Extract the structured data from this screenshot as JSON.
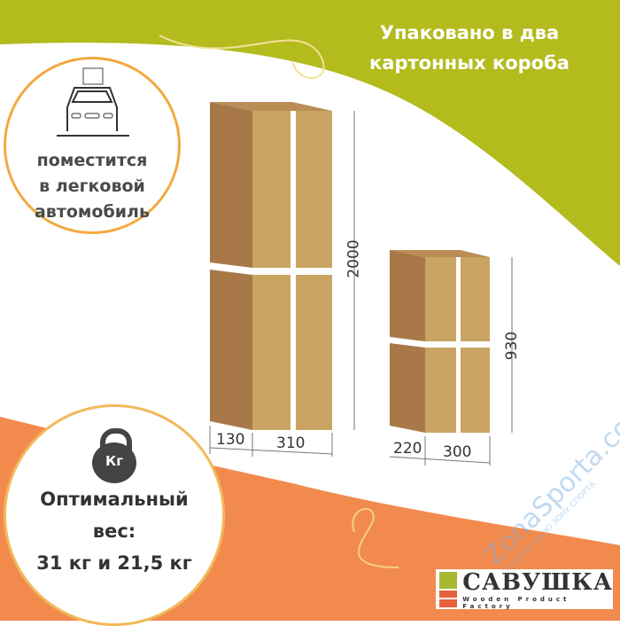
{
  "title": "Упаковано в два картонных короба",
  "car_badge": {
    "icon": "car-with-box-icon",
    "lines": [
      "поместится",
      "в легковой",
      "автомобиль"
    ]
  },
  "weight_badge": {
    "icon": "kettlebell-icon",
    "icon_label": "Кг",
    "lines": [
      "Оптимальный",
      "вес:",
      "31 кг и 21,5 кг"
    ]
  },
  "boxes": [
    {
      "height": "2000",
      "depth": "130",
      "width": "310"
    },
    {
      "height": "930",
      "depth": "220",
      "width": "300"
    }
  ],
  "logo": {
    "name": "САВУШКА",
    "subtitle": "Wooden Product Factory"
  },
  "watermark": {
    "text": "ZonaSporta.com",
    "tagline": "СОЗДАЕМ СВОЮ ЗОНУ СПОРТА"
  },
  "colors": {
    "green": "#b3bb1d",
    "orange": "#f28a4e",
    "cardboard_front": "#c9a462",
    "cardboard_side": "#a87848"
  }
}
